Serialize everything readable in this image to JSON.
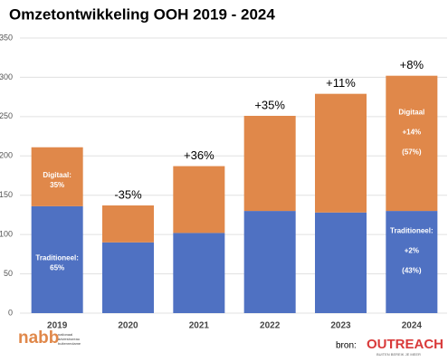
{
  "chart_data": {
    "type": "stacked_bar",
    "title": "Omzetontwikkeling OOH 2019 - 2024",
    "categories": [
      "2019",
      "2020",
      "2021",
      "2022",
      "2023",
      "2024"
    ],
    "series": [
      {
        "color": "#4f71c2",
        "values": [
          136,
          90,
          102,
          130,
          128,
          130
        ],
        "labels": [
          [
            "Traditioneel:",
            "65%"
          ],
          null,
          null,
          null,
          null,
          [
            "Traditioneel:",
            "+2%",
            "(43%)"
          ]
        ]
      },
      {
        "color": "#e0884a",
        "values": [
          75,
          47,
          85,
          121,
          151,
          172
        ],
        "labels": [
          [
            "Digitaal:",
            "35%"
          ],
          null,
          null,
          null,
          null,
          [
            "Digitaal",
            "+14%",
            "(57%)"
          ]
        ]
      }
    ],
    "growth_labels": [
      null,
      "-35%",
      "+36%",
      "+35%",
      "+11%",
      "+8%"
    ],
    "ylim": [
      0,
      350
    ],
    "yticks": [
      0,
      50,
      100,
      150,
      200,
      250,
      300,
      350
    ],
    "grid": true,
    "footer": {
      "source": "bron:",
      "logo_left": "nabb",
      "logo_left_sub": [
        "nationaal",
        "adviesbureau",
        "buitenreclame"
      ],
      "logo_right": "OUTREACH",
      "logo_right_sub": "BUITEN BEREIK JE MEER"
    }
  }
}
